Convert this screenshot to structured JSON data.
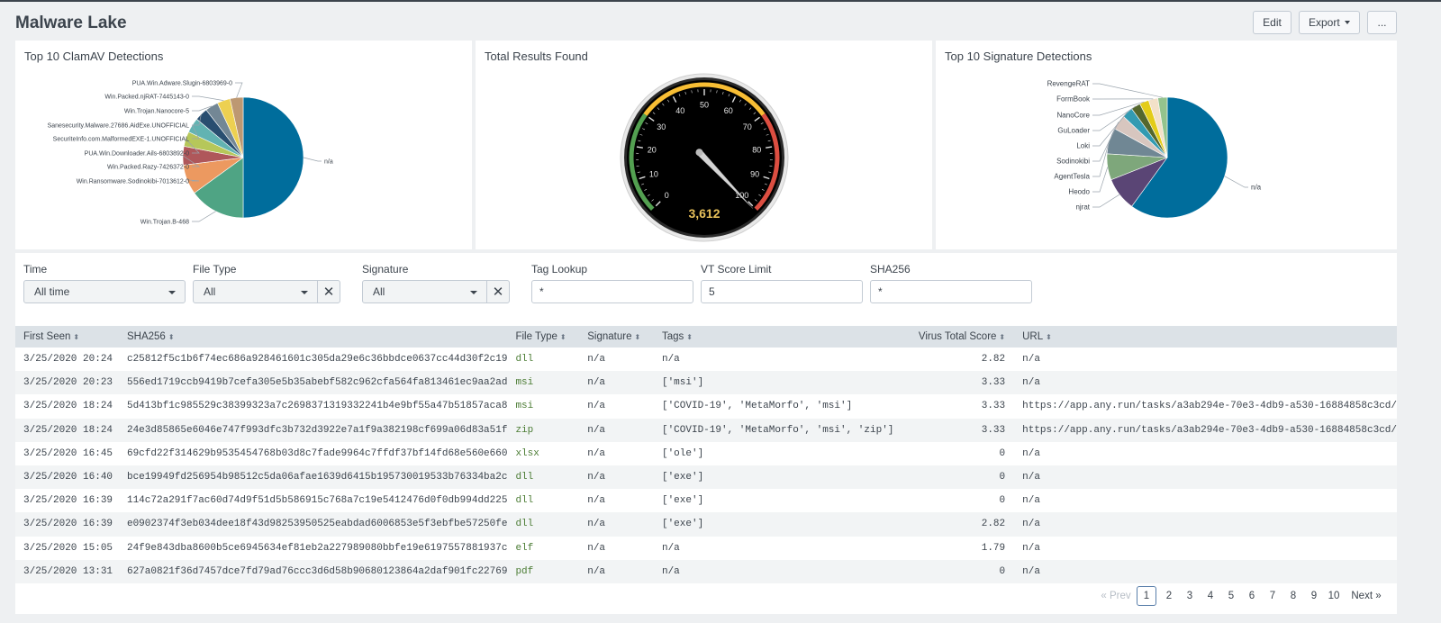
{
  "app": {
    "title": "Malware Lake"
  },
  "toolbar": {
    "edit": "Edit",
    "export": "Export",
    "more": "..."
  },
  "panels": {
    "clamav": {
      "title": "Top 10 ClamAV Detections",
      "slices": [
        {
          "label": "n/a",
          "value": 50,
          "color": "#006d9c"
        },
        {
          "label": "Win.Trojan.B-468",
          "value": 15,
          "color": "#4fa484"
        },
        {
          "label": "Win.Ransomware.Sodinokibi-7013612-0",
          "value": 8,
          "color": "#ec9960"
        },
        {
          "label": "Win.Packed.Razy-7426372-0",
          "value": 5,
          "color": "#af575a"
        },
        {
          "label": "PUA.Win.Downloader.Ails-6803892-0",
          "value": 4,
          "color": "#b6c75a"
        },
        {
          "label": "SecuriteInfo.com.MalformedEXE-1.UNOFFICIAL",
          "value": 4,
          "color": "#62b3b2"
        },
        {
          "label": "Sanesecurity.Malware.27686.AidExe.UNOFFICIAL",
          "value": 3.5,
          "color": "#294e70"
        },
        {
          "label": "Win.Trojan.Nanocore-5",
          "value": 3.5,
          "color": "#738795"
        },
        {
          "label": "Win.Packed.njRAT-7445143-0",
          "value": 3.5,
          "color": "#edd051"
        },
        {
          "label": "PUA.Win.Adware.Slugin-6803969-0",
          "value": 3.5,
          "color": "#bd9872"
        }
      ]
    },
    "total": {
      "title": "Total Results Found",
      "value": 3612,
      "value_text": "3,612",
      "ticks": [
        "0",
        "10",
        "20",
        "30",
        "40",
        "50",
        "60",
        "70",
        "80",
        "90",
        "100"
      ],
      "min": 0,
      "max": 100,
      "green_to": 30,
      "yellow_to": 70,
      "colors": {
        "green": "#53a051",
        "yellow": "#f8be34",
        "red": "#dc4e41"
      }
    },
    "signature": {
      "title": "Top 10 Signature Detections",
      "slices": [
        {
          "label": "n/a",
          "value": 60,
          "color": "#006d9c"
        },
        {
          "label": "njrat",
          "value": 9,
          "color": "#5a4575"
        },
        {
          "label": "Heodo",
          "value": 7,
          "color": "#7ea77b"
        },
        {
          "label": "AgentTesla",
          "value": 7,
          "color": "#708794"
        },
        {
          "label": "Sodinokibi",
          "value": 4,
          "color": "#d7c6bf"
        },
        {
          "label": "Loki",
          "value": 3,
          "color": "#339bb2"
        },
        {
          "label": "GuLoader",
          "value": 2.5,
          "color": "#55672d"
        },
        {
          "label": "NanoCore",
          "value": 2.5,
          "color": "#e3cc19"
        },
        {
          "label": "FormBook",
          "value": 2.5,
          "color": "#f3e1c9"
        },
        {
          "label": "RevengeRAT",
          "value": 2.5,
          "color": "#94c38d"
        }
      ]
    }
  },
  "filters": {
    "time": {
      "label": "Time",
      "value": "All time"
    },
    "filetype": {
      "label": "File Type",
      "value": "All",
      "clear": "✕"
    },
    "signature": {
      "label": "Signature",
      "value": "All",
      "clear": "✕"
    },
    "tag": {
      "label": "Tag Lookup",
      "value": "*"
    },
    "vt": {
      "label": "VT Score Limit",
      "value": "5"
    },
    "sha": {
      "label": "SHA256",
      "value": "*"
    }
  },
  "table": {
    "sort_glyph": "⬍",
    "columns": [
      "First Seen",
      "SHA256",
      "File Type",
      "Signature",
      "Tags",
      "Virus Total Score",
      "URL"
    ],
    "rows": [
      [
        "3/25/2020 20:24",
        "c25812f5c1b6f74ec686a928461601c305da29e6c36bbdce0637cc44d30f2c19",
        "dll",
        "n/a",
        "n/a",
        "2.82",
        "n/a"
      ],
      [
        "3/25/2020 20:23",
        "556ed1719ccb9419b7cefa305e5b35abebf582c962cfa564fa813461ec9aa2ad",
        "msi",
        "n/a",
        "['msi']",
        "3.33",
        "n/a"
      ],
      [
        "3/25/2020 18:24",
        "5d413bf1c985529c38399323a7c2698371319332241b4e9bf55a47b51857aca8",
        "msi",
        "n/a",
        "['COVID-19', 'MetaMorfo', 'msi']",
        "3.33",
        "https://app.any.run/tasks/a3ab294e-70e3-4db9-a530-16884858c3cd/"
      ],
      [
        "3/25/2020 18:24",
        "24e3d85865e6046e747f993dfc3b732d3922e7a1f9a382198cf699a06d83a51f",
        "zip",
        "n/a",
        "['COVID-19', 'MetaMorfo', 'msi', 'zip']",
        "3.33",
        "https://app.any.run/tasks/a3ab294e-70e3-4db9-a530-16884858c3cd/"
      ],
      [
        "3/25/2020 16:45",
        "69cfd22f314629b9535454768b03d8c7fade9964c7ffdf37bf14fd68e560e660",
        "xlsx",
        "n/a",
        "['ole']",
        "0",
        "n/a"
      ],
      [
        "3/25/2020 16:40",
        "bce19949fd256954b98512c5da06afae1639d6415b195730019533b76334ba2c",
        "dll",
        "n/a",
        "['exe']",
        "0",
        "n/a"
      ],
      [
        "3/25/2020 16:39",
        "114c72a291f7ac60d74d9f51d5b586915c768a7c19e5412476d0f0db994dd225",
        "dll",
        "n/a",
        "['exe']",
        "0",
        "n/a"
      ],
      [
        "3/25/2020 16:39",
        "e0902374f3eb034dee18f43d98253950525eabdad6006853e5f3ebfbe57250fe",
        "dll",
        "n/a",
        "['exe']",
        "2.82",
        "n/a"
      ],
      [
        "3/25/2020 15:05",
        "24f9e843dba8600b5ce6945634ef81eb2a227989080bbfe19e6197557881937c",
        "elf",
        "n/a",
        "n/a",
        "1.79",
        "n/a"
      ],
      [
        "3/25/2020 13:31",
        "627a0821f36d7457dce7fd79ad76ccc3d6d58b90680123864a2daf901fc22769",
        "pdf",
        "n/a",
        "n/a",
        "0",
        "n/a"
      ]
    ]
  },
  "pagination": {
    "prev": "« Prev",
    "pages": [
      "1",
      "2",
      "3",
      "4",
      "5",
      "6",
      "7",
      "8",
      "9",
      "10"
    ],
    "current": "1",
    "next": "Next »"
  }
}
